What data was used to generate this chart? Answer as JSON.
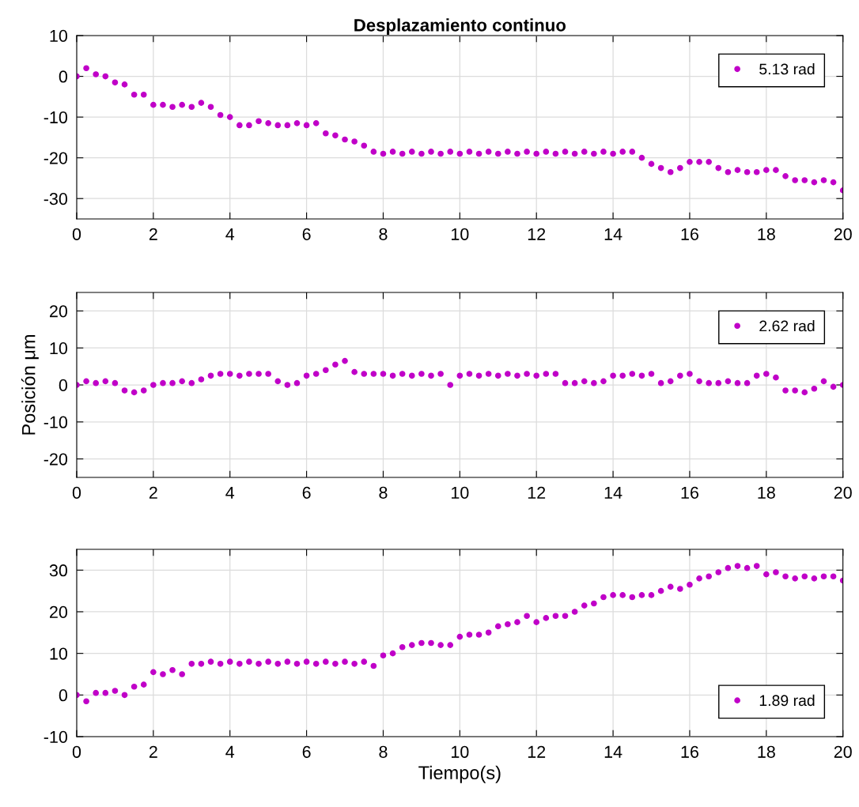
{
  "chart_data": [
    {
      "type": "scatter",
      "title": "Desplazamiento continuo",
      "x": [
        0,
        0.25,
        0.5,
        0.75,
        1,
        1.25,
        1.5,
        1.75,
        2,
        2.25,
        2.5,
        2.75,
        3,
        3.25,
        3.5,
        3.75,
        4,
        4.25,
        4.5,
        4.75,
        5,
        5.25,
        5.5,
        5.75,
        6,
        6.25,
        6.5,
        6.75,
        7,
        7.25,
        7.5,
        7.75,
        8,
        8.25,
        8.5,
        8.75,
        9,
        9.25,
        9.5,
        9.75,
        10,
        10.25,
        10.5,
        10.75,
        11,
        11.25,
        11.5,
        11.75,
        12,
        12.25,
        12.5,
        12.75,
        13,
        13.25,
        13.5,
        13.75,
        14,
        14.25,
        14.5,
        14.75,
        15,
        15.25,
        15.5,
        15.75,
        16,
        16.25,
        16.5,
        16.75,
        17,
        17.25,
        17.5,
        17.75,
        18,
        18.25,
        18.5,
        18.75,
        19,
        19.25,
        19.5,
        19.75,
        20
      ],
      "series": [
        {
          "name": "5.13 rad",
          "color": "#c000c8",
          "values": [
            0,
            2,
            0.5,
            0,
            -1.5,
            -2,
            -4.5,
            -4.5,
            -7,
            -7,
            -7.5,
            -7,
            -7.5,
            -6.5,
            -7.5,
            -9.5,
            -10,
            -12,
            -12,
            -11,
            -11.5,
            -12,
            -12,
            -11.5,
            -12,
            -11.5,
            -14,
            -14.5,
            -15.5,
            -16,
            -17,
            -18.5,
            -19,
            -18.5,
            -19,
            -18.5,
            -19,
            -18.5,
            -19,
            -18.5,
            -19,
            -18.5,
            -19,
            -18.5,
            -19,
            -18.5,
            -19,
            -18.5,
            -19,
            -18.5,
            -19,
            -18.5,
            -19,
            -18.5,
            -19,
            -18.5,
            -19,
            -18.5,
            -18.5,
            -20,
            -21.5,
            -22.5,
            -23.5,
            -22.5,
            -21,
            -21,
            -21,
            -22.5,
            -23.5,
            -23,
            -23.5,
            -23.5,
            -23,
            -23,
            -24.5,
            -25.5,
            -25.5,
            -26,
            -25.5,
            -26,
            -28
          ]
        }
      ],
      "xlim": [
        0,
        20
      ],
      "xticks": [
        0,
        2,
        4,
        6,
        8,
        10,
        12,
        14,
        16,
        18,
        20
      ],
      "ylim": [
        -35,
        10
      ],
      "yticks": [
        -30,
        -20,
        -10,
        0,
        10
      ],
      "grid": true,
      "legend": "top right",
      "marker": "circle"
    },
    {
      "type": "scatter",
      "ylabel": "Posición μm",
      "x": [
        0,
        0.25,
        0.5,
        0.75,
        1,
        1.25,
        1.5,
        1.75,
        2,
        2.25,
        2.5,
        2.75,
        3,
        3.25,
        3.5,
        3.75,
        4,
        4.25,
        4.5,
        4.75,
        5,
        5.25,
        5.5,
        5.75,
        6,
        6.25,
        6.5,
        6.75,
        7,
        7.25,
        7.5,
        7.75,
        8,
        8.25,
        8.5,
        8.75,
        9,
        9.25,
        9.5,
        9.75,
        10,
        10.25,
        10.5,
        10.75,
        11,
        11.25,
        11.5,
        11.75,
        12,
        12.25,
        12.5,
        12.75,
        13,
        13.25,
        13.5,
        13.75,
        14,
        14.25,
        14.5,
        14.75,
        15,
        15.25,
        15.5,
        15.75,
        16,
        16.25,
        16.5,
        16.75,
        17,
        17.25,
        17.5,
        17.75,
        18,
        18.25,
        18.5,
        18.75,
        19,
        19.25,
        19.5,
        19.75,
        20
      ],
      "series": [
        {
          "name": "2.62 rad",
          "color": "#c000c8",
          "values": [
            0,
            1,
            0.5,
            1,
            0.5,
            -1.5,
            -2,
            -1.5,
            0,
            0.5,
            0.5,
            1,
            0.5,
            1.5,
            2.5,
            3,
            3,
            2.5,
            3,
            3,
            3,
            1,
            0,
            0.5,
            2.5,
            3,
            4,
            5.5,
            6.5,
            3.5,
            3,
            3,
            3,
            2.5,
            3,
            2.5,
            3,
            2.5,
            3,
            0,
            2.5,
            3,
            2.5,
            3,
            2.5,
            3,
            2.5,
            3,
            2.5,
            3,
            3,
            0.5,
            0.5,
            1,
            0.5,
            1,
            2.5,
            2.5,
            3,
            2.5,
            3,
            0.5,
            1,
            2.5,
            3,
            1,
            0.5,
            0.5,
            1,
            0.5,
            0.5,
            2.5,
            3,
            2,
            -1.5,
            -1.5,
            -2,
            -1,
            1,
            -0.5,
            0
          ]
        }
      ],
      "xlim": [
        0,
        20
      ],
      "xticks": [
        0,
        2,
        4,
        6,
        8,
        10,
        12,
        14,
        16,
        18,
        20
      ],
      "ylim": [
        -25,
        25
      ],
      "yticks": [
        -20,
        -10,
        0,
        10,
        20
      ],
      "grid": true,
      "legend": "top right",
      "marker": "circle"
    },
    {
      "type": "scatter",
      "xlabel": "Tiempo(s)",
      "x": [
        0,
        0.25,
        0.5,
        0.75,
        1,
        1.25,
        1.5,
        1.75,
        2,
        2.25,
        2.5,
        2.75,
        3,
        3.25,
        3.5,
        3.75,
        4,
        4.25,
        4.5,
        4.75,
        5,
        5.25,
        5.5,
        5.75,
        6,
        6.25,
        6.5,
        6.75,
        7,
        7.25,
        7.5,
        7.75,
        8,
        8.25,
        8.5,
        8.75,
        9,
        9.25,
        9.5,
        9.75,
        10,
        10.25,
        10.5,
        10.75,
        11,
        11.25,
        11.5,
        11.75,
        12,
        12.25,
        12.5,
        12.75,
        13,
        13.25,
        13.5,
        13.75,
        14,
        14.25,
        14.5,
        14.75,
        15,
        15.25,
        15.5,
        15.75,
        16,
        16.25,
        16.5,
        16.75,
        17,
        17.25,
        17.5,
        17.75,
        18,
        18.25,
        18.5,
        18.75,
        19,
        19.25,
        19.5,
        19.75,
        20
      ],
      "series": [
        {
          "name": "1.89 rad",
          "color": "#c000c8",
          "values": [
            0,
            -1.5,
            0.5,
            0.5,
            1,
            0,
            2,
            2.5,
            5.5,
            5,
            6,
            5,
            7.5,
            7.5,
            8,
            7.5,
            8,
            7.5,
            8,
            7.5,
            8,
            7.5,
            8,
            7.5,
            8,
            7.5,
            8,
            7.5,
            8,
            7.5,
            8,
            7,
            9.5,
            10,
            11.5,
            12,
            12.5,
            12.5,
            12,
            12,
            14,
            14.5,
            14.5,
            15,
            16.5,
            17,
            17.5,
            19,
            17.5,
            18.5,
            19,
            19,
            20,
            21.5,
            22,
            23.5,
            24,
            24,
            23.5,
            24,
            24,
            25,
            26,
            25.5,
            26.5,
            28,
            28.5,
            29.5,
            30.5,
            31,
            30.5,
            31,
            29,
            29.5,
            28.5,
            28,
            28.5,
            28,
            28.5,
            28.5,
            27.5
          ]
        }
      ],
      "xlim": [
        0,
        20
      ],
      "xticks": [
        0,
        2,
        4,
        6,
        8,
        10,
        12,
        14,
        16,
        18,
        20
      ],
      "ylim": [
        -10,
        35
      ],
      "yticks": [
        -10,
        0,
        10,
        20,
        30
      ],
      "grid": true,
      "legend": "bottom right",
      "marker": "circle"
    }
  ]
}
